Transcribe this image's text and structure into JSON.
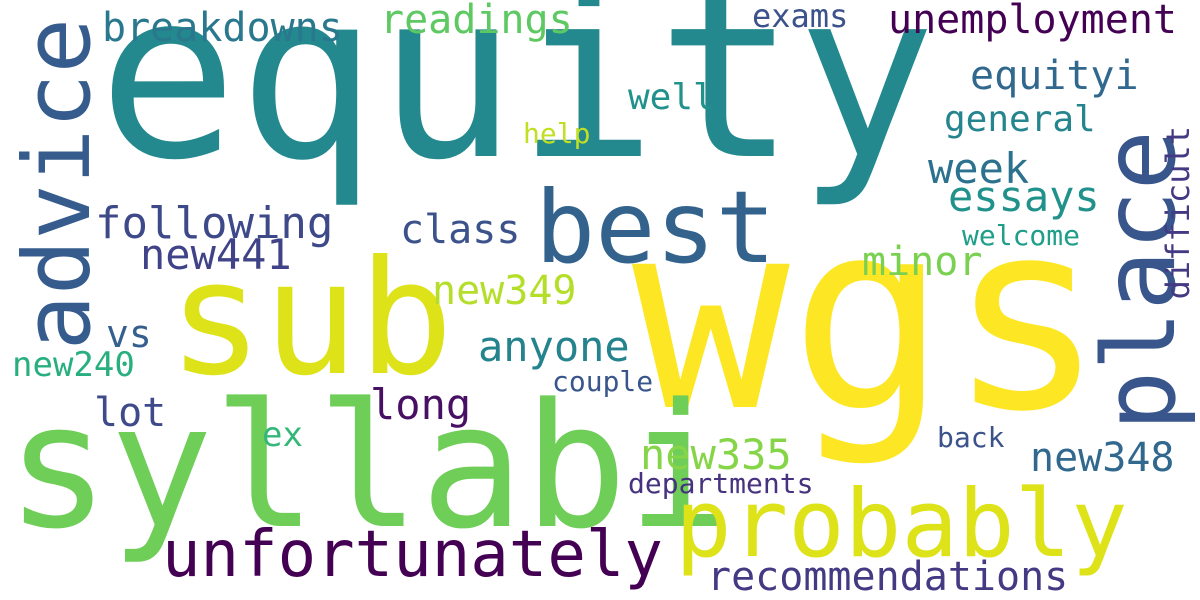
{
  "words": {
    "equity": "equity",
    "wgs": "wgs",
    "syllabi": "syllabi",
    "sub": "sub",
    "advice": "advice",
    "best": "best",
    "place": "place",
    "probably": "probably",
    "unfortunately": "unfortunately",
    "unemployment": "unemployment",
    "breakdowns": "breakdowns",
    "readings": "readings",
    "exams": "exams",
    "equityi": "equityi",
    "well": "well",
    "help": "help",
    "general": "general",
    "difficult": "difficult",
    "week": "week",
    "essays": "essays",
    "following": "following",
    "class": "class",
    "welcome": "welcome",
    "new441": "new441",
    "minor": "minor",
    "new349": "new349",
    "vs": "vs",
    "anyone": "anyone",
    "new240": "new240",
    "couple": "couple",
    "lot": "lot",
    "long": "long",
    "ex": "ex",
    "back": "back",
    "new335": "new335",
    "new348": "new348",
    "departments": "departments",
    "recommendations": "recommendations"
  },
  "colors": {
    "equity": "#23898e",
    "wgs": "#fde725",
    "syllabi": "#6ece58",
    "sub": "#dde318",
    "advice": "#365c8d",
    "best": "#33638d",
    "place": "#39568c",
    "probably": "#dde318",
    "unfortunately": "#440154",
    "unemployment": "#440154",
    "breakdowns": "#2a788e",
    "readings": "#5ec962",
    "exams": "#3b528b",
    "equityi": "#31688e",
    "well": "#21918c",
    "help": "#c2df23",
    "general": "#25858e",
    "difficult": "#443a83",
    "week": "#2c728e",
    "essays": "#21918c",
    "following": "#3e4989",
    "class": "#3b528b",
    "welcome": "#1f9e89",
    "new441": "#404387",
    "minor": "#7ad151",
    "new349": "#b5de2b",
    "vs": "#355f8d",
    "anyone": "#25838e",
    "new240": "#29af7f",
    "couple": "#39568c",
    "lot": "#3e4a89",
    "long": "#471063",
    "ex": "#35b779",
    "back": "#3b528b",
    "new335": "#86d549",
    "new348": "#31688e",
    "departments": "#46327e",
    "recommendations": "#443983"
  }
}
